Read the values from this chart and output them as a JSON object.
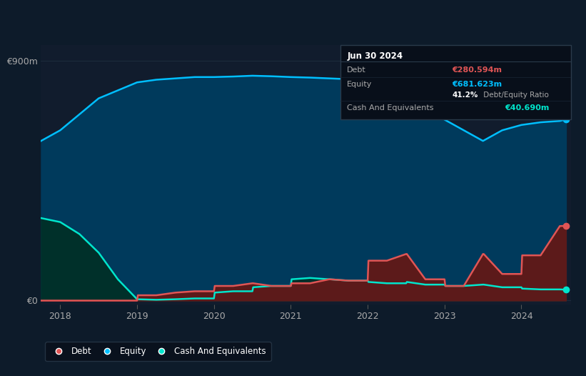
{
  "background_color": "#0d1b2a",
  "plot_bg_color": "#111c2d",
  "y_label_900": "€900m",
  "y_label_0": "€0",
  "x_ticks": [
    2018,
    2019,
    2020,
    2021,
    2022,
    2023,
    2024
  ],
  "equity_color": "#00bfff",
  "equity_fill_color": "#003a5c",
  "debt_color": "#e05555",
  "debt_fill_color": "#5c1a1a",
  "cash_color": "#00e5cc",
  "cash_fill_color": "#00302a",
  "equity_x": [
    2017.75,
    2018.0,
    2018.25,
    2018.5,
    2018.75,
    2019.0,
    2019.25,
    2019.5,
    2019.75,
    2020.0,
    2020.25,
    2020.5,
    2020.75,
    2021.0,
    2021.25,
    2021.5,
    2021.75,
    2022.0,
    2022.25,
    2022.5,
    2022.75,
    2023.0,
    2023.25,
    2023.5,
    2023.75,
    2024.0,
    2024.25,
    2024.5,
    2024.58
  ],
  "equity_y": [
    600,
    640,
    700,
    760,
    790,
    820,
    830,
    835,
    840,
    840,
    842,
    845,
    843,
    840,
    838,
    835,
    832,
    820,
    790,
    750,
    720,
    680,
    640,
    600,
    640,
    660,
    670,
    675,
    681
  ],
  "debt_x": [
    2017.75,
    2018.5,
    2018.75,
    2019.0,
    2019.01,
    2019.25,
    2019.5,
    2019.75,
    2020.0,
    2020.01,
    2020.25,
    2020.5,
    2020.51,
    2020.75,
    2021.0,
    2021.01,
    2021.25,
    2021.5,
    2021.51,
    2021.75,
    2022.0,
    2022.01,
    2022.25,
    2022.5,
    2022.51,
    2022.75,
    2023.0,
    2023.01,
    2023.25,
    2023.5,
    2023.51,
    2023.75,
    2024.0,
    2024.01,
    2024.25,
    2024.5,
    2024.58
  ],
  "debt_y": [
    0,
    0,
    0,
    0,
    20,
    20,
    30,
    35,
    35,
    55,
    55,
    65,
    65,
    55,
    55,
    65,
    65,
    80,
    80,
    75,
    75,
    150,
    150,
    175,
    175,
    80,
    80,
    55,
    55,
    175,
    175,
    100,
    100,
    170,
    170,
    280,
    281
  ],
  "cash_x": [
    2017.75,
    2018.0,
    2018.25,
    2018.5,
    2018.75,
    2019.0,
    2019.25,
    2019.5,
    2019.75,
    2020.0,
    2020.01,
    2020.25,
    2020.5,
    2020.51,
    2020.75,
    2021.0,
    2021.01,
    2021.25,
    2021.5,
    2021.51,
    2021.75,
    2022.0,
    2022.01,
    2022.25,
    2022.5,
    2022.51,
    2022.75,
    2023.0,
    2023.01,
    2023.25,
    2023.5,
    2023.51,
    2023.75,
    2024.0,
    2024.01,
    2024.25,
    2024.5,
    2024.58
  ],
  "cash_y": [
    310,
    295,
    250,
    180,
    80,
    5,
    3,
    5,
    8,
    8,
    30,
    35,
    35,
    50,
    55,
    55,
    80,
    85,
    80,
    80,
    75,
    75,
    70,
    65,
    65,
    70,
    60,
    60,
    55,
    55,
    60,
    60,
    50,
    50,
    45,
    42,
    42,
    41
  ],
  "tooltip_title": "Jun 30 2024",
  "tooltip_debt_label": "Debt",
  "tooltip_debt_value": "€280.594m",
  "tooltip_equity_label": "Equity",
  "tooltip_equity_value": "€681.623m",
  "tooltip_ratio": "41.2%",
  "tooltip_ratio_label": " Debt/Equity Ratio",
  "tooltip_cash_label": "Cash And Equivalents",
  "tooltip_cash_value": "€40.690m",
  "legend_debt": "Debt",
  "legend_equity": "Equity",
  "legend_cash": "Cash And Equivalents"
}
